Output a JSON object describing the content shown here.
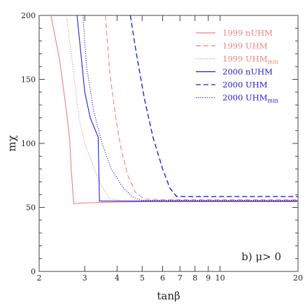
{
  "chart_data": {
    "type": "line",
    "title": "",
    "xlabel": "tanβ",
    "ylabel": "mχ",
    "x_scale": "log",
    "xlim": [
      2,
      20
    ],
    "ylim": [
      0,
      200
    ],
    "x_ticks": [
      2,
      3,
      4,
      5,
      6,
      7,
      8,
      9,
      10,
      20
    ],
    "x_tick_labels": [
      "2",
      "3",
      "4",
      "5",
      "6",
      "7",
      "8",
      "9",
      "10",
      "20"
    ],
    "y_ticks": [
      0,
      50,
      100,
      150,
      200
    ],
    "y_tick_labels": [
      "0",
      "50",
      "100",
      "150",
      "200"
    ],
    "grid": false,
    "legend_position": "top-right",
    "annotation": "b)  μ> 0",
    "series": [
      {
        "name": "1999  nUHM",
        "color": "#f08080",
        "dash": "solid",
        "points": [
          [
            2.22,
            200
          ],
          [
            2.4,
            165
          ],
          [
            2.55,
            125
          ],
          [
            2.62,
            105
          ],
          [
            2.66,
            80
          ],
          [
            2.72,
            53
          ],
          [
            3.0,
            53.5
          ],
          [
            5.0,
            54.5
          ],
          [
            10,
            54.5
          ],
          [
            20,
            54.5
          ]
        ]
      },
      {
        "name": "1999  UHM",
        "color": "#f08080",
        "dash": "dashed",
        "points": [
          [
            3.6,
            200
          ],
          [
            3.75,
            155
          ],
          [
            3.95,
            120
          ],
          [
            4.15,
            95
          ],
          [
            4.4,
            75
          ],
          [
            4.7,
            62
          ],
          [
            5.1,
            56.5
          ],
          [
            6,
            56
          ],
          [
            10,
            56
          ],
          [
            20,
            56
          ]
        ]
      },
      {
        "name": "1999  UHM",
        "subscript": "min",
        "color": "#f08080",
        "dash": "dotted",
        "points": [
          [
            2.55,
            200
          ],
          [
            2.7,
            160
          ],
          [
            2.85,
            120
          ],
          [
            3.0,
            100
          ],
          [
            3.2,
            85
          ],
          [
            3.45,
            68
          ],
          [
            3.75,
            57
          ],
          [
            4.2,
            55
          ],
          [
            10,
            55
          ],
          [
            20,
            55
          ]
        ]
      },
      {
        "name": "2000  nUHM",
        "color": "#2020d0",
        "dash": "solid",
        "points": [
          [
            2.8,
            200
          ],
          [
            2.9,
            170
          ],
          [
            3.0,
            140
          ],
          [
            3.15,
            120
          ],
          [
            3.38,
            105
          ],
          [
            3.42,
            55
          ],
          [
            4,
            55
          ],
          [
            10,
            55
          ],
          [
            20,
            55
          ]
        ]
      },
      {
        "name": "2000  UHM",
        "color": "#2020d0",
        "dash": "dashed",
        "points": [
          [
            4.5,
            200
          ],
          [
            4.75,
            170
          ],
          [
            5.1,
            135
          ],
          [
            5.5,
            105
          ],
          [
            6.0,
            80
          ],
          [
            6.4,
            65
          ],
          [
            6.8,
            58.5
          ],
          [
            10,
            58.5
          ],
          [
            20,
            58.5
          ]
        ]
      },
      {
        "name": "2000  UHM",
        "subscript": "min",
        "color": "#2020d0",
        "dash": "dotted",
        "points": [
          [
            2.95,
            200
          ],
          [
            3.05,
            160
          ],
          [
            3.25,
            125
          ],
          [
            3.5,
            100
          ],
          [
            3.8,
            80
          ],
          [
            4.2,
            66
          ],
          [
            4.6,
            58
          ],
          [
            5.0,
            55.5
          ],
          [
            10,
            55.5
          ],
          [
            20,
            55.5
          ]
        ]
      }
    ]
  }
}
